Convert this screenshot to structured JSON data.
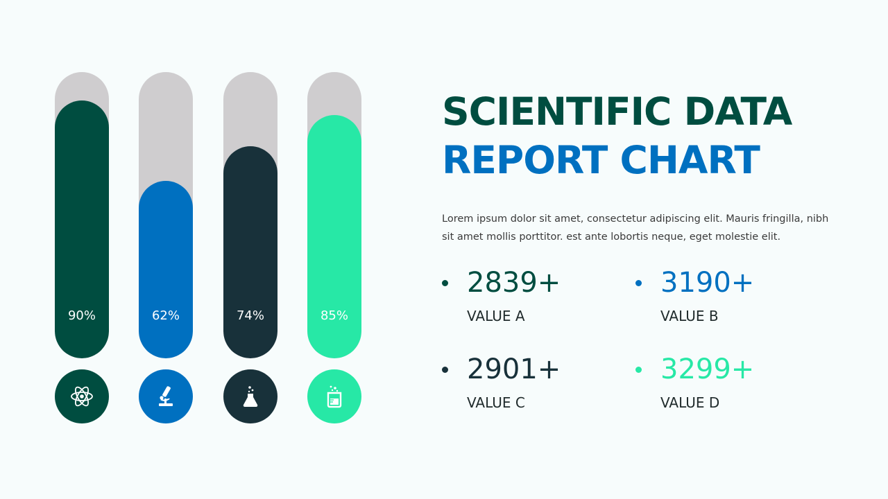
{
  "title": {
    "line1": "SCIENTIFIC DATA",
    "line2": "REPORT CHART"
  },
  "description": "Lorem ipsum dolor sit amet, consectetur adipiscing elit. Mauris fringilla, nibh sit amet mollis porttitor. est ante lobortis neque, eget molestie elit.",
  "colors": {
    "dark_green": "#004d40",
    "blue": "#0070c0",
    "charcoal": "#18313a",
    "mint": "#27e8a6",
    "track": "#cfcdcf"
  },
  "chart_data": {
    "type": "bar",
    "orientation": "vertical",
    "ylim": [
      0,
      100
    ],
    "bars": [
      {
        "label": "90%",
        "value": 90,
        "color": "#004d40",
        "icon": "atom-icon"
      },
      {
        "label": "62%",
        "value": 62,
        "color": "#0070c0",
        "icon": "microscope-icon"
      },
      {
        "label": "74%",
        "value": 74,
        "color": "#18313a",
        "icon": "flask-icon"
      },
      {
        "label": "85%",
        "value": 85,
        "color": "#27e8a6",
        "icon": "beaker-icon"
      }
    ]
  },
  "stats": [
    {
      "value": "2839+",
      "label": "VALUE A",
      "color": "#004d40"
    },
    {
      "value": "3190+",
      "label": "VALUE B",
      "color": "#0070c0"
    },
    {
      "value": "2901+",
      "label": "VALUE C",
      "color": "#18313a"
    },
    {
      "value": "3299+",
      "label": "VALUE D",
      "color": "#27e8a6"
    }
  ]
}
